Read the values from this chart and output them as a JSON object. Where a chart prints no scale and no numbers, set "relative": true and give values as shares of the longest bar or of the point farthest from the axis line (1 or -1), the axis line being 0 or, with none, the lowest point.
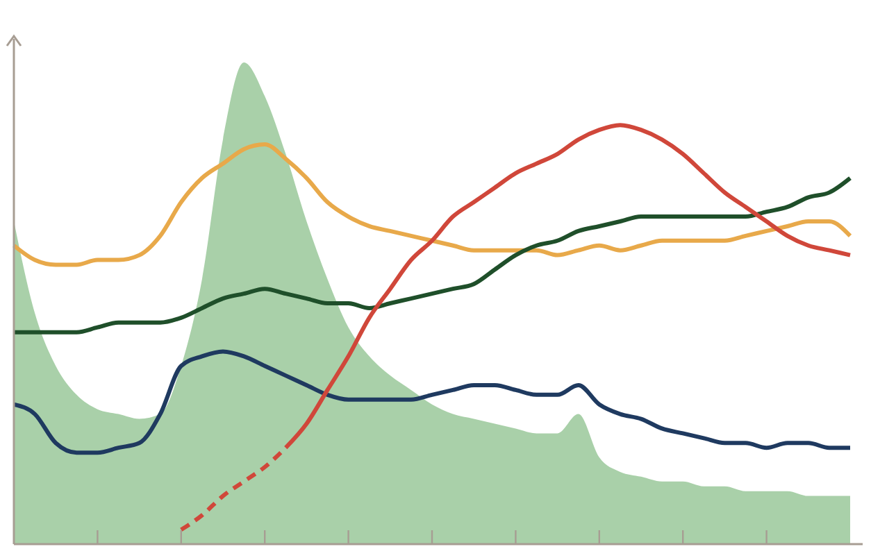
{
  "chart_data": {
    "type": "line",
    "relative": true,
    "categories": [
      null,
      null,
      null,
      null,
      null,
      null,
      null,
      null,
      null,
      null,
      null,
      null,
      null,
      null,
      null,
      null,
      null,
      null,
      null,
      null,
      null,
      null,
      null,
      null,
      null,
      null,
      null,
      null,
      null,
      null,
      null,
      null,
      null,
      null,
      null,
      null,
      null,
      null,
      null,
      null,
      null
    ],
    "series": [
      {
        "type": "area",
        "color": "#a9d0a9",
        "values": [
          0.67,
          0.48,
          0.37,
          0.31,
          0.28,
          0.27,
          0.26,
          0.27,
          0.37,
          0.55,
          0.84,
          1,
          0.93,
          0.81,
          0.67,
          0.55,
          0.45,
          0.39,
          0.35,
          0.32,
          0.29,
          0.27,
          0.26,
          0.25,
          0.24,
          0.23,
          0.23,
          0.27,
          0.18,
          0.15,
          0.14,
          0.13,
          0.13,
          0.12,
          0.12,
          0.11,
          0.11,
          0.11,
          0.1,
          0.1,
          0.1
        ]
      },
      {
        "color": "#e8a94a",
        "values": [
          0.62,
          0.59,
          0.58,
          0.58,
          0.59,
          0.59,
          0.6,
          0.64,
          0.71,
          0.76,
          0.79,
          0.82,
          0.83,
          0.8,
          0.76,
          0.71,
          0.68,
          0.66,
          0.65,
          0.64,
          0.63,
          0.62,
          0.61,
          0.61,
          0.61,
          0.61,
          0.6,
          0.61,
          0.62,
          0.61,
          0.62,
          0.63,
          0.63,
          0.63,
          0.63,
          0.64,
          0.65,
          0.66,
          0.67,
          0.67,
          0.64
        ]
      },
      {
        "color": "#1f4f2a",
        "values": [
          0.44,
          0.44,
          0.44,
          0.44,
          0.45,
          0.46,
          0.46,
          0.46,
          0.47,
          0.49,
          0.51,
          0.52,
          0.53,
          0.52,
          0.51,
          0.5,
          0.5,
          0.49,
          0.5,
          0.51,
          0.52,
          0.53,
          0.54,
          0.57,
          0.6,
          0.62,
          0.63,
          0.65,
          0.66,
          0.67,
          0.68,
          0.68,
          0.68,
          0.68,
          0.68,
          0.68,
          0.69,
          0.7,
          0.72,
          0.73,
          0.76
        ]
      },
      {
        "color": "#1f3a60",
        "values": [
          0.29,
          0.27,
          0.21,
          0.19,
          0.19,
          0.2,
          0.21,
          0.27,
          0.37,
          0.39,
          0.4,
          0.39,
          0.37,
          0.35,
          0.33,
          0.31,
          0.3,
          0.3,
          0.3,
          0.3,
          0.31,
          0.32,
          0.33,
          0.33,
          0.32,
          0.31,
          0.31,
          0.33,
          0.29,
          0.27,
          0.26,
          0.24,
          0.23,
          0.22,
          0.21,
          0.21,
          0.2,
          0.21,
          0.21,
          0.2,
          0.2
        ]
      },
      {
        "color": "#d0473a",
        "line_style": "dashed",
        "values": [
          null,
          null,
          null,
          null,
          null,
          null,
          null,
          null,
          0.03,
          0.06,
          0.1,
          0.13,
          0.16,
          0.2,
          null,
          null,
          null,
          null,
          null,
          null,
          null,
          null,
          null,
          null,
          null,
          null,
          null,
          null,
          null,
          null,
          null,
          null,
          null,
          null,
          null,
          null,
          null,
          null,
          null,
          null,
          null
        ]
      },
      {
        "color": "#d0473a",
        "line_style": "solid",
        "values": [
          null,
          null,
          null,
          null,
          null,
          null,
          null,
          null,
          null,
          null,
          null,
          null,
          null,
          0.2,
          0.25,
          0.32,
          0.39,
          0.47,
          0.53,
          0.59,
          0.63,
          0.68,
          0.71,
          0.74,
          0.77,
          0.79,
          0.81,
          0.84,
          0.86,
          0.87,
          0.86,
          0.84,
          0.81,
          0.77,
          0.73,
          0.7,
          0.67,
          0.64,
          0.62,
          0.61,
          0.6
        ]
      }
    ]
  }
}
